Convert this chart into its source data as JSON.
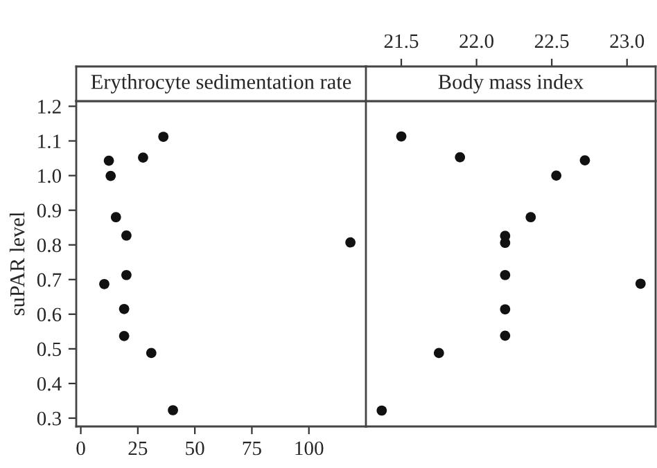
{
  "chart_data": [
    {
      "type": "scatter",
      "title": "Erythrocyte sedimentation rate",
      "ylabel": "suPAR level",
      "color": "#111111",
      "marker": "circle",
      "grid": false,
      "x": [
        12.3,
        13.1,
        36.2,
        27.3,
        15.4,
        20,
        118.2,
        20,
        10.3,
        19,
        19,
        30.9,
        40.4
      ],
      "values": [
        1.043,
        0.999,
        1.112,
        1.052,
        0.88,
        0.827,
        0.807,
        0.713,
        0.687,
        0.615,
        0.537,
        0.488,
        0.323
      ],
      "xlim": [
        -2,
        125
      ],
      "xticks": [
        0,
        25,
        50,
        75,
        100
      ],
      "ylim": [
        0.276,
        1.215
      ],
      "yticks": [
        0.3,
        0.4,
        0.5,
        0.6,
        0.7,
        0.8,
        0.9,
        {
          "value": 1,
          "label": "1.0"
        },
        1.1,
        1.2
      ]
    },
    {
      "type": "scatter",
      "title": "Body mass index",
      "color": "#111111",
      "marker": "circle",
      "grid": false,
      "tick_labels": "x",
      "x": [
        21.5,
        21.89,
        22.72,
        22.53,
        22.36,
        22.19,
        22.19,
        22.19,
        23.09,
        22.19,
        22.19,
        21.75,
        21.37
      ],
      "values": [
        1.113,
        1.053,
        1.044,
        1.0,
        0.88,
        0.826,
        0.806,
        0.713,
        0.688,
        0.614,
        0.538,
        0.488,
        0.322
      ],
      "xlim": [
        21.265,
        23.19
      ],
      "xticks": [
        21.5,
        {
          "value": 22,
          "label": "22.0"
        },
        22.5,
        {
          "value": 23,
          "label": "23.0"
        }
      ],
      "ylim": [
        0.276,
        1.215
      ]
    }
  ]
}
